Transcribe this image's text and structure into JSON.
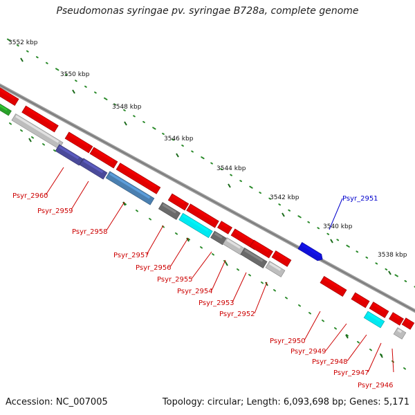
{
  "title": "Pseudomonas syringae pv. syringae B728a, complete genome",
  "footer": {
    "accession": "Accession: NC_007005",
    "summary": "Topology: circular; Length: 6,093,698 bp; Genes: 5,171"
  },
  "colors": {
    "red_gene": "#e00000",
    "blue_gene": "#1010d8",
    "cyan_gene": "#00e8f0",
    "grey_gene": "#bdbdbd",
    "dark_grey_gene": "#6a6a6a",
    "steel_gene": "#4a7fb0",
    "indigo_gene": "#4a4a9a",
    "backbone": "#8a8a8a",
    "tick": "#2a8a2a",
    "label_red": "#cc0000",
    "label_blue": "#0000cc"
  },
  "kbp_labels": [
    "3552 kbp",
    "3550 kbp",
    "3548 kbp",
    "3546 kbp",
    "3544 kbp",
    "3542 kbp",
    "3540 kbp",
    "3538 kbp"
  ],
  "gene_labels": [
    {
      "text": "Psyr_2960",
      "color": "red"
    },
    {
      "text": "Psyr_2959",
      "color": "red"
    },
    {
      "text": "Psyr_2958",
      "color": "red"
    },
    {
      "text": "Psyr_2957",
      "color": "red"
    },
    {
      "text": "Psyr_2956",
      "color": "red"
    },
    {
      "text": "Psyr_2955",
      "color": "red"
    },
    {
      "text": "Psyr_2954",
      "color": "red"
    },
    {
      "text": "Psyr_2953",
      "color": "red"
    },
    {
      "text": "Psyr_2952",
      "color": "red"
    },
    {
      "text": "Psyr_2951",
      "color": "blue"
    },
    {
      "text": "Psyr_2950",
      "color": "red"
    },
    {
      "text": "Psyr_2949",
      "color": "red"
    },
    {
      "text": "Psyr_2948",
      "color": "red"
    },
    {
      "text": "Psyr_2947",
      "color": "red"
    },
    {
      "text": "Psyr_2946",
      "color": "red"
    }
  ]
}
